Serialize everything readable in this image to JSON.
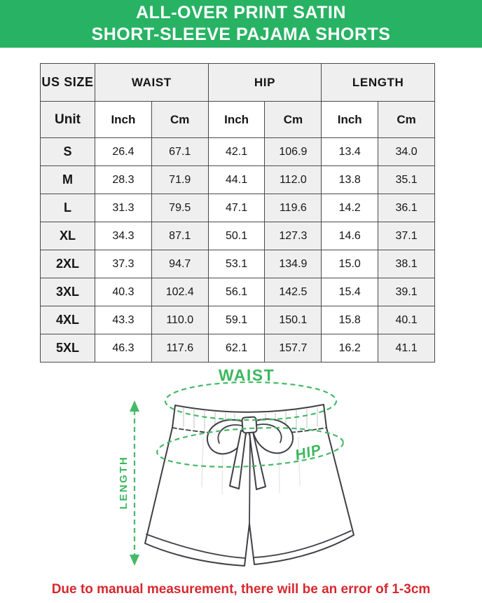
{
  "header": {
    "title_line1": "ALL-OVER PRINT SATIN",
    "title_line2": "SHORT-SLEEVE PAJAMA SHORTS"
  },
  "table": {
    "group_headers": [
      "US SIZE",
      "WAIST",
      "HIP",
      "LENGTH"
    ],
    "unit_label": "Unit",
    "units": [
      "Inch",
      "Cm",
      "Inch",
      "Cm",
      "Inch",
      "Cm"
    ],
    "rows": [
      {
        "size": "S",
        "values": [
          "26.4",
          "67.1",
          "42.1",
          "106.9",
          "13.4",
          "34.0"
        ]
      },
      {
        "size": "M",
        "values": [
          "28.3",
          "71.9",
          "44.1",
          "112.0",
          "13.8",
          "35.1"
        ]
      },
      {
        "size": "L",
        "values": [
          "31.3",
          "79.5",
          "47.1",
          "119.6",
          "14.2",
          "36.1"
        ]
      },
      {
        "size": "XL",
        "values": [
          "34.3",
          "87.1",
          "50.1",
          "127.3",
          "14.6",
          "37.1"
        ]
      },
      {
        "size": "2XL",
        "values": [
          "37.3",
          "94.7",
          "53.1",
          "134.9",
          "15.0",
          "38.1"
        ]
      },
      {
        "size": "3XL",
        "values": [
          "40.3",
          "102.4",
          "56.1",
          "142.5",
          "15.4",
          "39.1"
        ]
      },
      {
        "size": "4XL",
        "values": [
          "43.3",
          "110.0",
          "59.1",
          "150.1",
          "15.8",
          "40.1"
        ]
      },
      {
        "size": "5XL",
        "values": [
          "46.3",
          "117.6",
          "62.1",
          "157.7",
          "16.2",
          "41.1"
        ]
      }
    ]
  },
  "diagram": {
    "labels": {
      "waist": "WAIST",
      "hip": "HIP",
      "length": "LENGTH"
    }
  },
  "footer": {
    "note": "Due to manual measurement, there will be an error of 1-3cm"
  },
  "colors": {
    "banner_green": "#27b363",
    "diagram_green": "#3cb85f",
    "dash_green": "#45b967",
    "note_red": "#d7282f",
    "cell_shade": "#efefef",
    "table_border": "#4a4a4a"
  },
  "chart_data": {
    "type": "table",
    "title": "ALL-OVER PRINT SATIN SHORT-SLEEVE PAJAMA SHORTS",
    "columns": [
      "US SIZE",
      "WAIST Inch",
      "WAIST Cm",
      "HIP Inch",
      "HIP Cm",
      "LENGTH Inch",
      "LENGTH Cm"
    ],
    "rows": [
      [
        "S",
        "26.4",
        "67.1",
        "42.1",
        "106.9",
        "13.4",
        "34.0"
      ],
      [
        "M",
        "28.3",
        "71.9",
        "44.1",
        "112.0",
        "13.8",
        "35.1"
      ],
      [
        "L",
        "31.3",
        "79.5",
        "47.1",
        "119.6",
        "14.2",
        "36.1"
      ],
      [
        "XL",
        "34.3",
        "87.1",
        "50.1",
        "127.3",
        "14.6",
        "37.1"
      ],
      [
        "2XL",
        "37.3",
        "94.7",
        "53.1",
        "134.9",
        "15.0",
        "38.1"
      ],
      [
        "3XL",
        "40.3",
        "102.4",
        "56.1",
        "142.5",
        "15.4",
        "39.1"
      ],
      [
        "4XL",
        "43.3",
        "110.0",
        "59.1",
        "150.1",
        "15.8",
        "40.1"
      ],
      [
        "5XL",
        "46.3",
        "117.6",
        "62.1",
        "157.7",
        "16.2",
        "41.1"
      ]
    ]
  }
}
